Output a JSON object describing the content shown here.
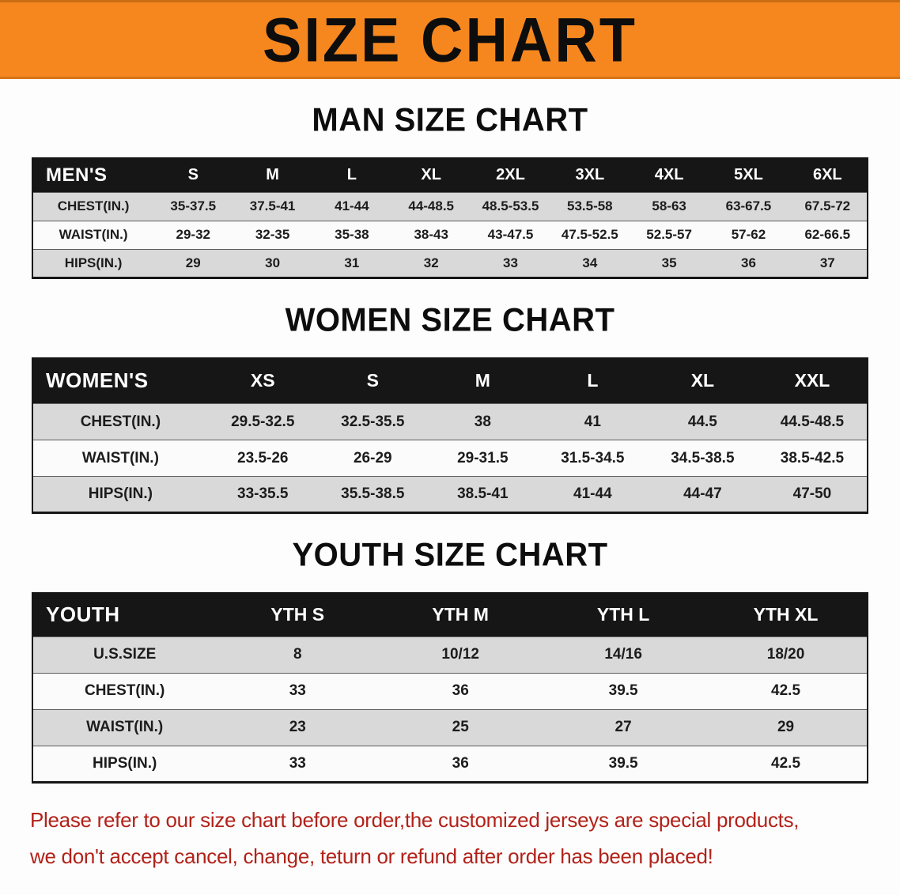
{
  "banner": {
    "title": "SIZE CHART",
    "bg_color": "#F6871F"
  },
  "chart_data": [
    {
      "type": "table",
      "title": "MAN SIZE CHART",
      "columns": [
        "MEN'S",
        "S",
        "M",
        "L",
        "XL",
        "2XL",
        "3XL",
        "4XL",
        "5XL",
        "6XL"
      ],
      "rows": [
        [
          "CHEST(IN.)",
          "35-37.5",
          "37.5-41",
          "41-44",
          "44-48.5",
          "48.5-53.5",
          "53.5-58",
          "58-63",
          "63-67.5",
          "67.5-72"
        ],
        [
          "WAIST(IN.)",
          "29-32",
          "32-35",
          "35-38",
          "38-43",
          "43-47.5",
          "47.5-52.5",
          "52.5-57",
          "57-62",
          "62-66.5"
        ],
        [
          "HIPS(IN.)",
          "29",
          "30",
          "31",
          "32",
          "33",
          "34",
          "35",
          "36",
          "37"
        ]
      ]
    },
    {
      "type": "table",
      "title": "WOMEN SIZE CHART",
      "columns": [
        "WOMEN'S",
        "XS",
        "S",
        "M",
        "L",
        "XL",
        "XXL"
      ],
      "rows": [
        [
          "CHEST(IN.)",
          "29.5-32.5",
          "32.5-35.5",
          "38",
          "41",
          "44.5",
          "44.5-48.5"
        ],
        [
          "WAIST(IN.)",
          "23.5-26",
          "26-29",
          "29-31.5",
          "31.5-34.5",
          "34.5-38.5",
          "38.5-42.5"
        ],
        [
          "HIPS(IN.)",
          "33-35.5",
          "35.5-38.5",
          "38.5-41",
          "41-44",
          "44-47",
          "47-50"
        ]
      ]
    },
    {
      "type": "table",
      "title": "YOUTH SIZE CHART",
      "columns": [
        "YOUTH",
        "YTH S",
        "YTH M",
        "YTH L",
        "YTH XL"
      ],
      "rows": [
        [
          "U.S.SIZE",
          "8",
          "10/12",
          "14/16",
          "18/20"
        ],
        [
          "CHEST(IN.)",
          "33",
          "36",
          "39.5",
          "42.5"
        ],
        [
          "WAIST(IN.)",
          "23",
          "25",
          "27",
          "29"
        ],
        [
          "HIPS(IN.)",
          "33",
          "36",
          "39.5",
          "42.5"
        ]
      ]
    }
  ],
  "disclaimer": {
    "line1": "Please refer to our size chart before order,the customized jerseys are special products,",
    "line2": "we don't accept cancel, change, teturn or refund after order has been placed!",
    "color": "#B2221A"
  }
}
